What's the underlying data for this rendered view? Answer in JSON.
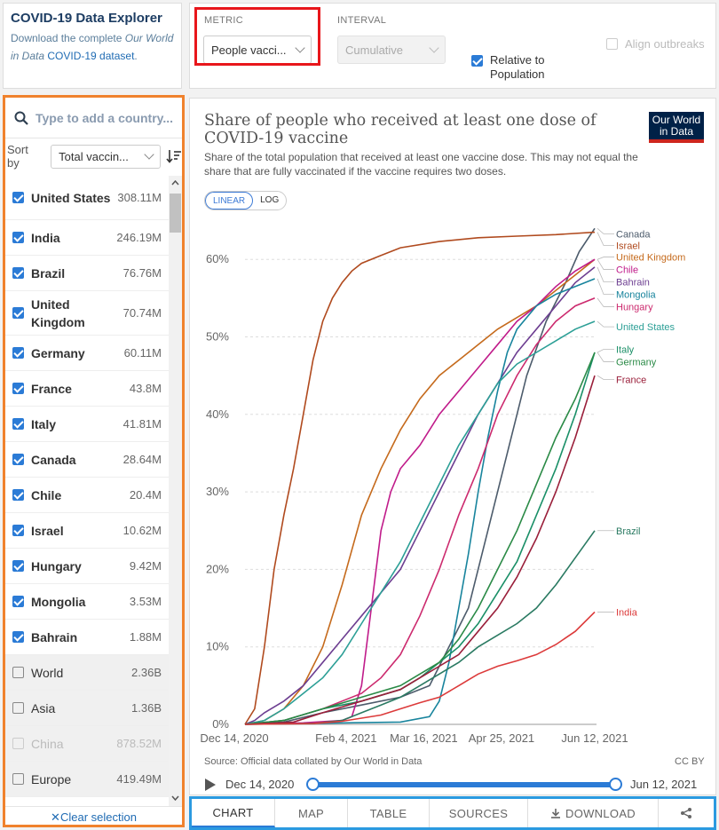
{
  "explorer": {
    "title": "COVID-19 Data Explorer",
    "desc_prefix": "Download the complete ",
    "desc_italic": "Our World in Data",
    "desc_link": "COVID-19 dataset",
    "desc_suffix": "."
  },
  "controls": {
    "metric_label": "METRIC",
    "metric_value": "People vacci...",
    "interval_label": "INTERVAL",
    "interval_value": "Cumulative",
    "relative_label": "Relative to Population",
    "relative_checked": true,
    "align_label": "Align outbreaks",
    "align_checked": false
  },
  "sidebar": {
    "search_placeholder": "Type to add a country...",
    "sort_label": "Sort by",
    "sort_value": "Total vaccin...",
    "clear_label": "Clear selection",
    "countries": [
      {
        "name": "United States",
        "value": "308.11M",
        "checked": true
      },
      {
        "name": "India",
        "value": "246.19M",
        "checked": true
      },
      {
        "name": "Brazil",
        "value": "76.76M",
        "checked": true
      },
      {
        "name": "United Kingdom",
        "value": "70.74M",
        "checked": true
      },
      {
        "name": "Germany",
        "value": "60.11M",
        "checked": true
      },
      {
        "name": "France",
        "value": "43.8M",
        "checked": true
      },
      {
        "name": "Italy",
        "value": "41.81M",
        "checked": true
      },
      {
        "name": "Canada",
        "value": "28.64M",
        "checked": true
      },
      {
        "name": "Chile",
        "value": "20.4M",
        "checked": true
      },
      {
        "name": "Israel",
        "value": "10.62M",
        "checked": true
      },
      {
        "name": "Hungary",
        "value": "9.42M",
        "checked": true
      },
      {
        "name": "Mongolia",
        "value": "3.53M",
        "checked": true
      },
      {
        "name": "Bahrain",
        "value": "1.88M",
        "checked": true
      },
      {
        "name": "World",
        "value": "2.36B",
        "checked": false
      },
      {
        "name": "Asia",
        "value": "1.36B",
        "checked": false
      },
      {
        "name": "China",
        "value": "878.52M",
        "checked": false,
        "faded": true
      },
      {
        "name": "Europe",
        "value": "419.49M",
        "checked": false
      }
    ]
  },
  "chart": {
    "title": "Share of people who received at least one dose of COVID-19 vaccine",
    "subtitle": "Share of the total population that received at least one vaccine dose. This may not equal the share that are fully vaccinated if the vaccine requires two doses.",
    "logo": "Our World in Data",
    "scale_linear": "LINEAR",
    "scale_log": "LOG",
    "source": "Source: Official data collated by Our World in Data",
    "license": "CC BY",
    "timeline_start": "Dec 14, 2020",
    "timeline_end": "Jun 12, 2021"
  },
  "chart_data": {
    "type": "line",
    "title": "Share of people who received at least one dose of COVID-19 vaccine",
    "xlabel": "",
    "ylabel": "",
    "x_ticks": [
      "Dec 14, 2020",
      "Feb 4, 2021",
      "Mar 16, 2021",
      "Apr 25, 2021",
      "Jun 12, 2021"
    ],
    "y_ticks": [
      "0%",
      "10%",
      "20%",
      "30%",
      "40%",
      "50%",
      "60%"
    ],
    "ylim": [
      0,
      64
    ],
    "xlim_days": [
      0,
      180
    ],
    "grid": true,
    "series": [
      {
        "name": "Canada",
        "color": "#4c5b6b",
        "points": [
          [
            0,
            0
          ],
          [
            20,
            0.3
          ],
          [
            40,
            1.5
          ],
          [
            60,
            2.5
          ],
          [
            80,
            3.5
          ],
          [
            95,
            5
          ],
          [
            105,
            10
          ],
          [
            115,
            15
          ],
          [
            125,
            25
          ],
          [
            135,
            35
          ],
          [
            145,
            45
          ],
          [
            155,
            52
          ],
          [
            165,
            57
          ],
          [
            172,
            61
          ],
          [
            180,
            64
          ]
        ]
      },
      {
        "name": "Israel",
        "color": "#b04a1e",
        "points": [
          [
            0,
            0
          ],
          [
            5,
            2
          ],
          [
            10,
            10
          ],
          [
            15,
            20
          ],
          [
            20,
            27
          ],
          [
            25,
            33
          ],
          [
            30,
            40
          ],
          [
            35,
            47
          ],
          [
            40,
            52
          ],
          [
            45,
            55
          ],
          [
            50,
            57
          ],
          [
            55,
            58.5
          ],
          [
            60,
            59.5
          ],
          [
            70,
            60.5
          ],
          [
            80,
            61.5
          ],
          [
            100,
            62.3
          ],
          [
            120,
            62.8
          ],
          [
            140,
            63
          ],
          [
            160,
            63.2
          ],
          [
            180,
            63.5
          ]
        ]
      },
      {
        "name": "United Kingdom",
        "color": "#c56a1c",
        "points": [
          [
            0,
            0
          ],
          [
            10,
            0.5
          ],
          [
            20,
            2
          ],
          [
            30,
            5
          ],
          [
            40,
            10
          ],
          [
            50,
            18
          ],
          [
            60,
            27
          ],
          [
            70,
            33
          ],
          [
            80,
            38
          ],
          [
            90,
            42
          ],
          [
            100,
            45
          ],
          [
            110,
            47
          ],
          [
            120,
            49
          ],
          [
            130,
            51
          ],
          [
            140,
            52.5
          ],
          [
            150,
            54
          ],
          [
            160,
            56
          ],
          [
            170,
            58
          ],
          [
            180,
            60
          ]
        ]
      },
      {
        "name": "Chile",
        "color": "#c01b8a",
        "points": [
          [
            0,
            0
          ],
          [
            30,
            0.2
          ],
          [
            50,
            0.5
          ],
          [
            55,
            1
          ],
          [
            60,
            5
          ],
          [
            65,
            15
          ],
          [
            70,
            25
          ],
          [
            75,
            30
          ],
          [
            80,
            33
          ],
          [
            90,
            36
          ],
          [
            100,
            40
          ],
          [
            110,
            43
          ],
          [
            120,
            46
          ],
          [
            130,
            49
          ],
          [
            140,
            52
          ],
          [
            150,
            54
          ],
          [
            160,
            56.5
          ],
          [
            170,
            58.5
          ],
          [
            180,
            60
          ]
        ]
      },
      {
        "name": "Bahrain",
        "color": "#6d3e91",
        "points": [
          [
            0,
            0
          ],
          [
            5,
            0.5
          ],
          [
            10,
            1.5
          ],
          [
            20,
            3
          ],
          [
            30,
            5
          ],
          [
            40,
            8
          ],
          [
            50,
            11
          ],
          [
            60,
            14
          ],
          [
            70,
            17
          ],
          [
            80,
            20
          ],
          [
            90,
            25
          ],
          [
            100,
            30
          ],
          [
            110,
            35
          ],
          [
            120,
            40
          ],
          [
            130,
            44
          ],
          [
            140,
            48
          ],
          [
            150,
            51
          ],
          [
            160,
            54
          ],
          [
            170,
            57
          ],
          [
            180,
            59
          ]
        ]
      },
      {
        "name": "Mongolia",
        "color": "#18849d",
        "points": [
          [
            0,
            0
          ],
          [
            80,
            0.3
          ],
          [
            95,
            1
          ],
          [
            100,
            3
          ],
          [
            105,
            8
          ],
          [
            110,
            15
          ],
          [
            115,
            22
          ],
          [
            120,
            30
          ],
          [
            125,
            37
          ],
          [
            130,
            43
          ],
          [
            135,
            48
          ],
          [
            140,
            51
          ],
          [
            150,
            54
          ],
          [
            160,
            55.5
          ],
          [
            170,
            56.5
          ],
          [
            180,
            57.5
          ]
        ]
      },
      {
        "name": "Hungary",
        "color": "#cc2a6e",
        "points": [
          [
            0,
            0
          ],
          [
            20,
            0.5
          ],
          [
            40,
            2
          ],
          [
            60,
            4
          ],
          [
            70,
            6
          ],
          [
            80,
            9
          ],
          [
            90,
            14
          ],
          [
            100,
            20
          ],
          [
            110,
            27
          ],
          [
            120,
            33
          ],
          [
            130,
            40
          ],
          [
            140,
            45
          ],
          [
            150,
            49
          ],
          [
            160,
            52
          ],
          [
            170,
            54
          ],
          [
            180,
            55
          ]
        ]
      },
      {
        "name": "United States",
        "color": "#2c9f96",
        "points": [
          [
            0,
            0
          ],
          [
            10,
            0.5
          ],
          [
            20,
            2
          ],
          [
            30,
            4
          ],
          [
            40,
            6
          ],
          [
            50,
            9
          ],
          [
            60,
            13
          ],
          [
            70,
            17
          ],
          [
            80,
            21
          ],
          [
            90,
            26
          ],
          [
            100,
            31
          ],
          [
            110,
            36
          ],
          [
            120,
            40
          ],
          [
            130,
            44
          ],
          [
            140,
            46.5
          ],
          [
            150,
            48
          ],
          [
            160,
            49.5
          ],
          [
            170,
            51
          ],
          [
            180,
            52
          ]
        ]
      },
      {
        "name": "Italy",
        "color": "#1a8f67",
        "points": [
          [
            0,
            0
          ],
          [
            20,
            0.5
          ],
          [
            40,
            2
          ],
          [
            60,
            3
          ],
          [
            80,
            4.5
          ],
          [
            90,
            6
          ],
          [
            100,
            8
          ],
          [
            110,
            10
          ],
          [
            120,
            13
          ],
          [
            130,
            17
          ],
          [
            140,
            21
          ],
          [
            150,
            27
          ],
          [
            160,
            33
          ],
          [
            170,
            40
          ],
          [
            180,
            48
          ]
        ]
      },
      {
        "name": "Germany",
        "color": "#2a8a46",
        "points": [
          [
            0,
            0
          ],
          [
            20,
            0.5
          ],
          [
            40,
            2
          ],
          [
            60,
            3.5
          ],
          [
            80,
            5
          ],
          [
            90,
            6.5
          ],
          [
            100,
            8
          ],
          [
            110,
            11
          ],
          [
            120,
            15
          ],
          [
            130,
            20
          ],
          [
            140,
            25
          ],
          [
            150,
            31
          ],
          [
            160,
            37
          ],
          [
            170,
            42
          ],
          [
            180,
            48
          ]
        ]
      },
      {
        "name": "France",
        "color": "#9a1f3a",
        "points": [
          [
            0,
            0
          ],
          [
            25,
            0.3
          ],
          [
            40,
            1.5
          ],
          [
            60,
            3
          ],
          [
            80,
            4.5
          ],
          [
            90,
            6
          ],
          [
            100,
            7.5
          ],
          [
            110,
            9
          ],
          [
            120,
            12
          ],
          [
            130,
            15
          ],
          [
            140,
            19
          ],
          [
            150,
            24
          ],
          [
            160,
            30
          ],
          [
            170,
            37
          ],
          [
            180,
            45
          ]
        ]
      },
      {
        "name": "Brazil",
        "color": "#2a7a62",
        "points": [
          [
            0,
            0
          ],
          [
            35,
            0.1
          ],
          [
            50,
            0.5
          ],
          [
            60,
            1.5
          ],
          [
            70,
            2.5
          ],
          [
            80,
            3.5
          ],
          [
            90,
            5
          ],
          [
            100,
            6.5
          ],
          [
            110,
            8
          ],
          [
            120,
            10
          ],
          [
            130,
            11.5
          ],
          [
            140,
            13
          ],
          [
            150,
            15
          ],
          [
            160,
            18
          ],
          [
            170,
            21.5
          ],
          [
            180,
            25
          ]
        ]
      },
      {
        "name": "India",
        "color": "#dc3a3a",
        "points": [
          [
            0,
            0
          ],
          [
            35,
            0.1
          ],
          [
            50,
            0.4
          ],
          [
            60,
            0.8
          ],
          [
            70,
            1.2
          ],
          [
            80,
            2
          ],
          [
            90,
            2.8
          ],
          [
            100,
            3.5
          ],
          [
            110,
            5
          ],
          [
            120,
            6.5
          ],
          [
            130,
            7.5
          ],
          [
            140,
            8.2
          ],
          [
            150,
            9
          ],
          [
            160,
            10.3
          ],
          [
            170,
            12
          ],
          [
            180,
            14.5
          ]
        ]
      }
    ],
    "labels": [
      {
        "name": "Canada",
        "y_label": 63.3
      },
      {
        "name": "Israel",
        "y_label": 61.8
      },
      {
        "name": "United Kingdom",
        "y_label": 60.3
      },
      {
        "name": "Chile",
        "y_label": 58.7
      },
      {
        "name": "Bahrain",
        "y_label": 57.1
      },
      {
        "name": "Mongolia",
        "y_label": 55.5
      },
      {
        "name": "Hungary",
        "y_label": 53.9
      },
      {
        "name": "United States",
        "y_label": 51.3
      },
      {
        "name": "Italy",
        "y_label": 48.4
      },
      {
        "name": "Germany",
        "y_label": 46.8
      },
      {
        "name": "France",
        "y_label": 44.5
      },
      {
        "name": "Brazil",
        "y_label": 25.0
      },
      {
        "name": "India",
        "y_label": 14.5
      }
    ]
  },
  "tabs": [
    "CHART",
    "MAP",
    "TABLE",
    "SOURCES",
    "DOWNLOAD",
    ""
  ]
}
